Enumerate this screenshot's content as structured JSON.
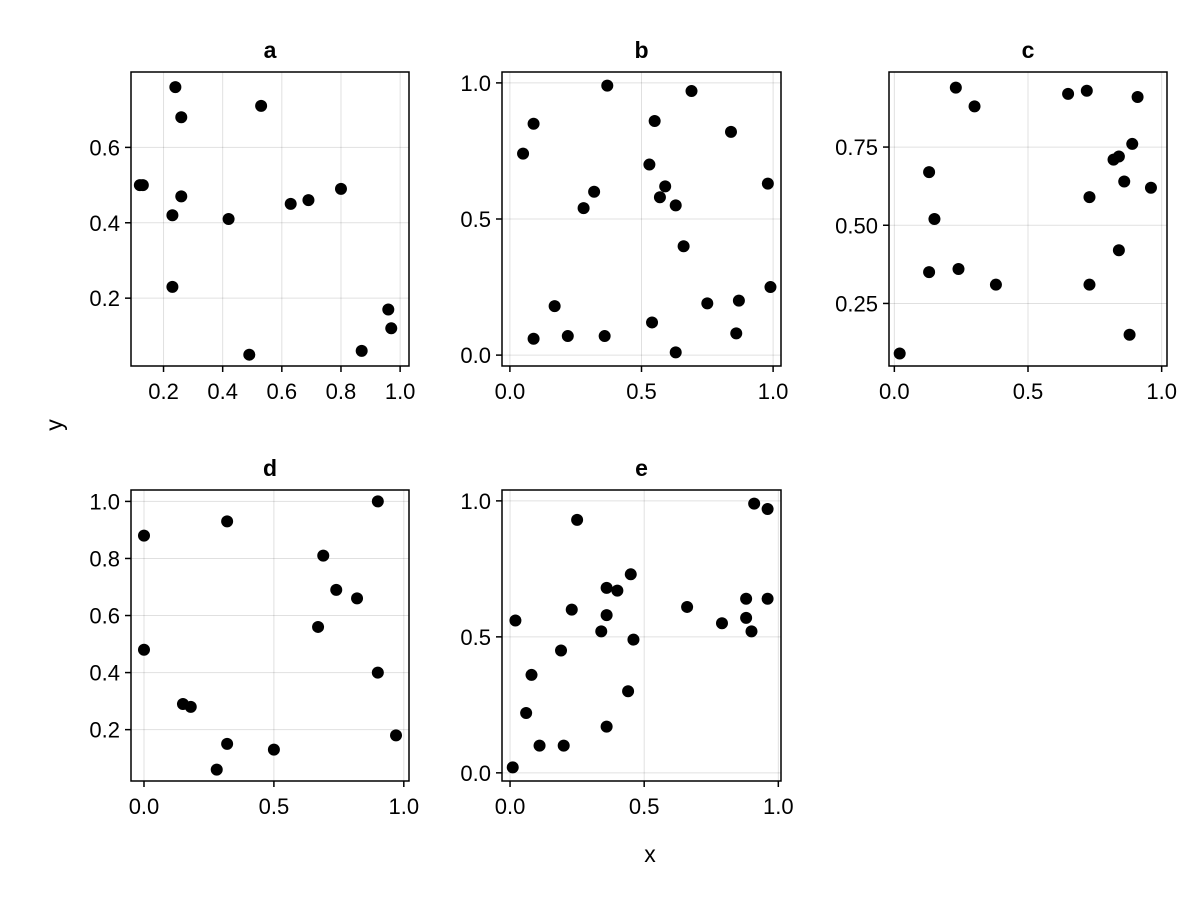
{
  "chart_data": {
    "type": "scatter",
    "xlabel": "x",
    "ylabel": "y",
    "grid": true,
    "marker_color": "#000000",
    "panels": [
      {
        "title": "a",
        "xlim": [
          0.09,
          1.03
        ],
        "ylim": [
          0.02,
          0.8
        ],
        "xticks": [
          0.2,
          0.4,
          0.6,
          0.8,
          1.0
        ],
        "xtick_labels": [
          "0.2",
          "0.4",
          "0.6",
          "0.8",
          "1.0"
        ],
        "yticks": [
          0.2,
          0.4,
          0.6
        ],
        "ytick_labels": [
          "0.2",
          "0.4",
          "0.6"
        ],
        "points": [
          [
            0.24,
            0.76
          ],
          [
            0.26,
            0.68
          ],
          [
            0.53,
            0.71
          ],
          [
            0.12,
            0.5
          ],
          [
            0.13,
            0.5
          ],
          [
            0.26,
            0.47
          ],
          [
            0.23,
            0.42
          ],
          [
            0.42,
            0.41
          ],
          [
            0.63,
            0.45
          ],
          [
            0.69,
            0.46
          ],
          [
            0.8,
            0.49
          ],
          [
            0.23,
            0.23
          ],
          [
            0.96,
            0.17
          ],
          [
            0.97,
            0.12
          ],
          [
            0.49,
            0.05
          ],
          [
            0.87,
            0.06
          ]
        ]
      },
      {
        "title": "b",
        "xlim": [
          -0.03,
          1.03
        ],
        "ylim": [
          -0.04,
          1.04
        ],
        "xticks": [
          0.0,
          0.5,
          1.0
        ],
        "xtick_labels": [
          "0.0",
          "0.5",
          "1.0"
        ],
        "yticks": [
          0.0,
          0.5,
          1.0
        ],
        "ytick_labels": [
          "0.0",
          "0.5",
          "1.0"
        ],
        "points": [
          [
            0.37,
            0.99
          ],
          [
            0.69,
            0.97
          ],
          [
            0.09,
            0.85
          ],
          [
            0.55,
            0.86
          ],
          [
            0.84,
            0.82
          ],
          [
            0.05,
            0.74
          ],
          [
            0.53,
            0.7
          ],
          [
            0.59,
            0.62
          ],
          [
            0.57,
            0.58
          ],
          [
            0.32,
            0.6
          ],
          [
            0.63,
            0.55
          ],
          [
            0.28,
            0.54
          ],
          [
            0.98,
            0.63
          ],
          [
            0.66,
            0.4
          ],
          [
            0.99,
            0.25
          ],
          [
            0.17,
            0.18
          ],
          [
            0.75,
            0.19
          ],
          [
            0.87,
            0.2
          ],
          [
            0.54,
            0.12
          ],
          [
            0.09,
            0.06
          ],
          [
            0.22,
            0.07
          ],
          [
            0.36,
            0.07
          ],
          [
            0.63,
            0.01
          ],
          [
            0.86,
            0.08
          ]
        ]
      },
      {
        "title": "c",
        "xlim": [
          -0.02,
          1.02
        ],
        "ylim": [
          0.05,
          0.99
        ],
        "xticks": [
          0.0,
          0.5,
          1.0
        ],
        "xtick_labels": [
          "0.0",
          "0.5",
          "1.0"
        ],
        "yticks": [
          0.25,
          0.5,
          0.75
        ],
        "ytick_labels": [
          "0.25",
          "0.50",
          "0.75"
        ],
        "points": [
          [
            0.23,
            0.94
          ],
          [
            0.3,
            0.88
          ],
          [
            0.65,
            0.92
          ],
          [
            0.72,
            0.93
          ],
          [
            0.91,
            0.91
          ],
          [
            0.13,
            0.67
          ],
          [
            0.82,
            0.71
          ],
          [
            0.84,
            0.72
          ],
          [
            0.89,
            0.76
          ],
          [
            0.86,
            0.64
          ],
          [
            0.96,
            0.62
          ],
          [
            0.73,
            0.59
          ],
          [
            0.15,
            0.52
          ],
          [
            0.84,
            0.42
          ],
          [
            0.13,
            0.35
          ],
          [
            0.24,
            0.36
          ],
          [
            0.38,
            0.31
          ],
          [
            0.73,
            0.31
          ],
          [
            0.88,
            0.15
          ],
          [
            0.02,
            0.09
          ]
        ]
      },
      {
        "title": "d",
        "xlim": [
          -0.05,
          1.02
        ],
        "ylim": [
          0.02,
          1.04
        ],
        "xticks": [
          0.0,
          0.5,
          1.0
        ],
        "xtick_labels": [
          "0.0",
          "0.5",
          "1.0"
        ],
        "yticks": [
          0.2,
          0.4,
          0.6,
          0.8,
          1.0
        ],
        "ytick_labels": [
          "0.2",
          "0.4",
          "0.6",
          "0.8",
          "1.0"
        ],
        "points": [
          [
            0.9,
            1.0
          ],
          [
            0.0,
            0.88
          ],
          [
            0.32,
            0.93
          ],
          [
            0.69,
            0.81
          ],
          [
            0.74,
            0.69
          ],
          [
            0.82,
            0.66
          ],
          [
            0.67,
            0.56
          ],
          [
            0.0,
            0.48
          ],
          [
            0.9,
            0.4
          ],
          [
            0.15,
            0.29
          ],
          [
            0.18,
            0.28
          ],
          [
            0.32,
            0.15
          ],
          [
            0.5,
            0.13
          ],
          [
            0.28,
            0.06
          ],
          [
            0.97,
            0.18
          ]
        ]
      },
      {
        "title": "e",
        "xlim": [
          -0.03,
          1.01
        ],
        "ylim": [
          -0.03,
          1.04
        ],
        "xticks": [
          0.0,
          0.5,
          1.0
        ],
        "xtick_labels": [
          "0.0",
          "0.5",
          "1.0"
        ],
        "yticks": [
          0.0,
          0.5,
          1.0
        ],
        "ytick_labels": [
          "0.0",
          "0.5",
          "1.0"
        ],
        "points": [
          [
            0.91,
            0.99
          ],
          [
            0.96,
            0.97
          ],
          [
            0.25,
            0.93
          ],
          [
            0.45,
            0.73
          ],
          [
            0.36,
            0.68
          ],
          [
            0.4,
            0.67
          ],
          [
            0.66,
            0.61
          ],
          [
            0.23,
            0.6
          ],
          [
            0.36,
            0.58
          ],
          [
            0.88,
            0.64
          ],
          [
            0.96,
            0.64
          ],
          [
            0.88,
            0.57
          ],
          [
            0.79,
            0.55
          ],
          [
            0.9,
            0.52
          ],
          [
            0.02,
            0.56
          ],
          [
            0.34,
            0.52
          ],
          [
            0.46,
            0.49
          ],
          [
            0.19,
            0.45
          ],
          [
            0.08,
            0.36
          ],
          [
            0.44,
            0.3
          ],
          [
            0.06,
            0.22
          ],
          [
            0.36,
            0.17
          ],
          [
            0.11,
            0.1
          ],
          [
            0.2,
            0.1
          ],
          [
            0.01,
            0.02
          ]
        ]
      }
    ]
  }
}
